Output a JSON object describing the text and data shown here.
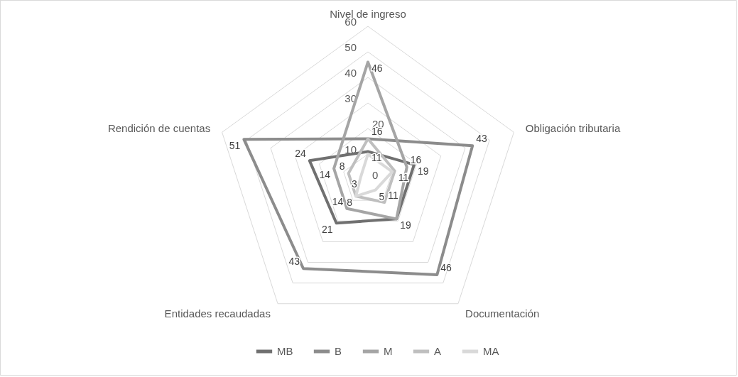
{
  "chart_data": {
    "type": "radar",
    "categories": [
      "Nivel de ingreso",
      "Obligación tributaria",
      "Documentación",
      "Entidades recaudadas",
      "Rendición de cuentas"
    ],
    "series": [
      {
        "name": "MB",
        "color": "#707070",
        "values": [
          11,
          19,
          19,
          21,
          24
        ],
        "value_labels": [
          "11",
          "19",
          "19",
          "21",
          "24"
        ]
      },
      {
        "name": "B",
        "color": "#8c8c8c",
        "values": [
          16,
          43,
          46,
          43,
          51
        ],
        "value_labels": [
          "16",
          "43",
          "46",
          "43",
          "51"
        ]
      },
      {
        "name": "M",
        "color": "#a5a5a5",
        "values": [
          46,
          16,
          19,
          14,
          14
        ],
        "value_labels": [
          "46",
          "16",
          null,
          "14",
          "14"
        ]
      },
      {
        "name": "A",
        "color": "#bfbfbf",
        "values": [
          16,
          11,
          11,
          8,
          8
        ],
        "value_labels": [
          null,
          "11",
          "11",
          "8",
          "8"
        ]
      },
      {
        "name": "MA",
        "color": "#d9d9d9",
        "values": [
          10,
          10,
          5,
          8,
          3
        ],
        "value_labels": [
          null,
          null,
          "5",
          null,
          "3"
        ]
      }
    ],
    "ylim": [
      0,
      60
    ],
    "yticks": [
      0,
      10,
      20,
      30,
      40,
      50,
      60
    ],
    "grid": true,
    "legend": "bottom",
    "marker": "none",
    "line_style": "solid"
  }
}
